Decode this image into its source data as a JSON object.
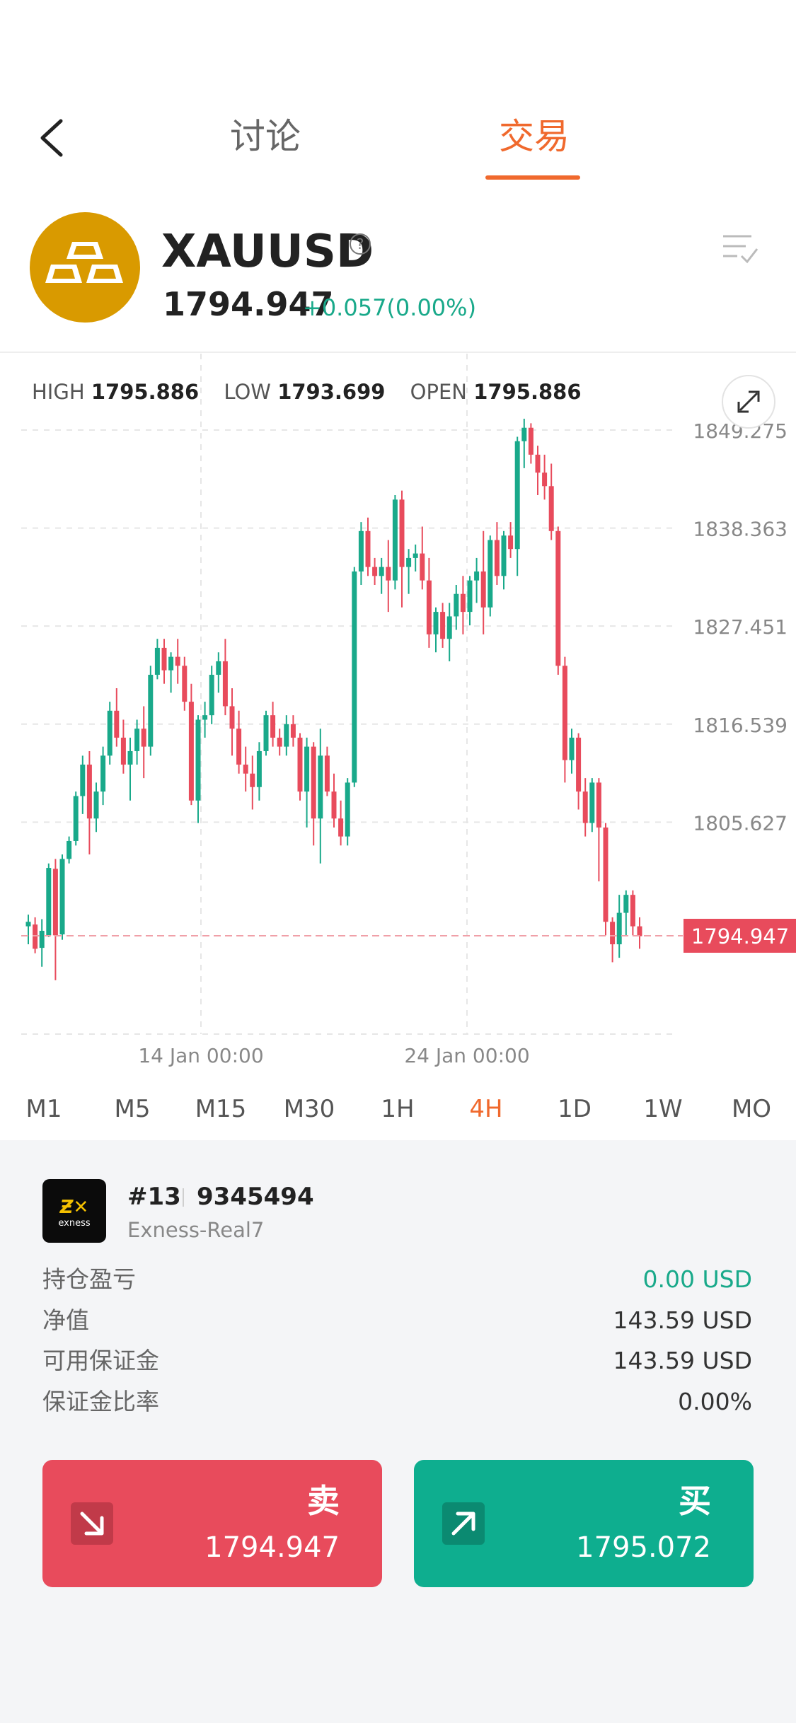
{
  "nav": {
    "back_icon": "chevron-left-icon",
    "tabs": [
      {
        "label": "讨论",
        "active": false
      },
      {
        "label": "交易",
        "active": true
      }
    ]
  },
  "instrument": {
    "symbol": "XAUUSD",
    "price": "1794.947",
    "change": "+0.057(0.00%)",
    "icon": "gold-bars-icon",
    "help_icon": "question-circle-icon",
    "list_icon": "checklist-icon"
  },
  "stats": {
    "high_label": "HIGH",
    "high": "1795.886",
    "low_label": "LOW",
    "low": "1793.699",
    "open_label": "OPEN",
    "open": "1795.886"
  },
  "chart_data": {
    "type": "candlestick",
    "y_ticks": [
      "1849.275",
      "1838.363",
      "1827.451",
      "1816.539",
      "1805.627"
    ],
    "x_ticks": [
      "14 Jan 00:00",
      "24 Jan 00:00"
    ],
    "current_price_label": "1794.947",
    "grid": true,
    "up_color": "#19a98a",
    "down_color": "#e84b5c",
    "candles": [
      [
        1796.0,
        1797.3,
        1794.0,
        1796.5
      ],
      [
        1796.2,
        1797.0,
        1793.0,
        1793.5
      ],
      [
        1793.6,
        1796.8,
        1791.5,
        1795.5
      ],
      [
        1795.0,
        1803.0,
        1794.8,
        1802.5
      ],
      [
        1802.4,
        1803.5,
        1790.0,
        1795.0
      ],
      [
        1795.1,
        1804.0,
        1794.5,
        1803.5
      ],
      [
        1803.5,
        1806.0,
        1803.0,
        1805.5
      ],
      [
        1805.5,
        1811.0,
        1805.0,
        1810.5
      ],
      [
        1810.5,
        1815.0,
        1808.5,
        1814.0
      ],
      [
        1814.0,
        1815.5,
        1804.0,
        1808.0
      ],
      [
        1808.0,
        1812.0,
        1806.5,
        1811.0
      ],
      [
        1811.0,
        1816.0,
        1809.5,
        1815.0
      ],
      [
        1815.0,
        1821.0,
        1814.0,
        1820.0
      ],
      [
        1820.0,
        1822.5,
        1816.0,
        1817.0
      ],
      [
        1817.0,
        1819.0,
        1813.0,
        1814.0
      ],
      [
        1814.0,
        1817.0,
        1810.0,
        1815.5
      ],
      [
        1815.5,
        1819.0,
        1814.0,
        1818.0
      ],
      [
        1818.0,
        1820.5,
        1812.5,
        1816.0
      ],
      [
        1816.0,
        1825.0,
        1815.0,
        1824.0
      ],
      [
        1824.0,
        1828.0,
        1823.5,
        1827.0
      ],
      [
        1827.0,
        1828.0,
        1823.0,
        1824.5
      ],
      [
        1824.5,
        1826.5,
        1822.0,
        1826.0
      ],
      [
        1826.0,
        1828.0,
        1823.0,
        1825.0
      ],
      [
        1825.0,
        1826.0,
        1820.0,
        1821.0
      ],
      [
        1821.0,
        1823.0,
        1809.5,
        1810.0
      ],
      [
        1810.0,
        1819.5,
        1807.5,
        1819.0
      ],
      [
        1819.0,
        1821.0,
        1817.0,
        1819.5
      ],
      [
        1819.5,
        1825.0,
        1818.5,
        1824.0
      ],
      [
        1824.0,
        1826.5,
        1822.0,
        1825.5
      ],
      [
        1825.5,
        1828.0,
        1819.5,
        1820.5
      ],
      [
        1820.5,
        1822.5,
        1815.0,
        1818.0
      ],
      [
        1818.0,
        1820.0,
        1813.0,
        1814.0
      ],
      [
        1814.0,
        1816.0,
        1811.0,
        1813.0
      ],
      [
        1813.0,
        1815.0,
        1809.0,
        1811.5
      ],
      [
        1811.5,
        1816.5,
        1810.0,
        1815.5
      ],
      [
        1815.5,
        1820.0,
        1815.0,
        1819.5
      ],
      [
        1819.5,
        1821.0,
        1816.0,
        1817.0
      ],
      [
        1817.0,
        1818.0,
        1815.0,
        1816.0
      ],
      [
        1816.0,
        1819.5,
        1815.0,
        1818.5
      ],
      [
        1818.5,
        1819.5,
        1816.0,
        1817.0
      ],
      [
        1817.0,
        1817.5,
        1810.0,
        1811.0
      ],
      [
        1811.0,
        1817.0,
        1807.0,
        1816.0
      ],
      [
        1816.0,
        1816.5,
        1805.0,
        1808.0
      ],
      [
        1808.0,
        1818.0,
        1803.0,
        1815.0
      ],
      [
        1815.0,
        1816.0,
        1810.5,
        1811.0
      ],
      [
        1811.0,
        1813.0,
        1807.0,
        1808.0
      ],
      [
        1808.0,
        1810.0,
        1805.0,
        1806.0
      ],
      [
        1806.0,
        1812.5,
        1805.0,
        1812.0
      ],
      [
        1812.0,
        1836.0,
        1811.5,
        1835.5
      ],
      [
        1835.5,
        1841.0,
        1834.0,
        1840.0
      ],
      [
        1840.0,
        1841.5,
        1835.0,
        1836.0
      ],
      [
        1836.0,
        1837.0,
        1834.0,
        1835.0
      ],
      [
        1835.0,
        1837.0,
        1833.0,
        1836.0
      ],
      [
        1836.0,
        1839.0,
        1831.0,
        1834.5
      ],
      [
        1834.5,
        1844.0,
        1833.5,
        1843.5
      ],
      [
        1843.5,
        1844.5,
        1831.5,
        1836.0
      ],
      [
        1836.0,
        1838.0,
        1833.0,
        1837.0
      ],
      [
        1837.0,
        1838.5,
        1835.5,
        1837.5
      ],
      [
        1837.5,
        1840.5,
        1833.5,
        1834.5
      ],
      [
        1834.5,
        1837.0,
        1827.0,
        1828.5
      ],
      [
        1828.5,
        1831.5,
        1826.5,
        1831.0
      ],
      [
        1831.0,
        1832.0,
        1827.0,
        1828.0
      ],
      [
        1828.0,
        1832.0,
        1825.5,
        1830.5
      ],
      [
        1830.5,
        1834.0,
        1829.0,
        1833.0
      ],
      [
        1833.0,
        1835.0,
        1828.5,
        1831.0
      ],
      [
        1831.0,
        1835.0,
        1829.5,
        1834.5
      ],
      [
        1834.5,
        1837.0,
        1832.0,
        1835.5
      ],
      [
        1835.5,
        1840.0,
        1828.5,
        1831.5
      ],
      [
        1831.5,
        1839.5,
        1830.5,
        1839.0
      ],
      [
        1839.0,
        1841.0,
        1834.0,
        1835.0
      ],
      [
        1835.0,
        1840.0,
        1833.5,
        1839.5
      ],
      [
        1839.5,
        1841.0,
        1837.0,
        1838.0
      ],
      [
        1838.0,
        1850.5,
        1835.0,
        1850.0
      ],
      [
        1850.0,
        1852.5,
        1847.0,
        1851.5
      ],
      [
        1851.5,
        1852.0,
        1847.5,
        1848.5
      ],
      [
        1848.5,
        1849.5,
        1844.0,
        1846.5
      ],
      [
        1846.5,
        1848.5,
        1843.5,
        1845.0
      ],
      [
        1845.0,
        1847.5,
        1839.0,
        1840.0
      ],
      [
        1840.0,
        1840.5,
        1824.0,
        1825.0
      ],
      [
        1825.0,
        1826.0,
        1812.0,
        1814.5
      ],
      [
        1814.5,
        1818.0,
        1813.0,
        1817.0
      ],
      [
        1817.0,
        1817.5,
        1809.0,
        1811.0
      ],
      [
        1811.0,
        1812.5,
        1806.0,
        1807.5
      ],
      [
        1807.5,
        1812.5,
        1806.5,
        1812.0
      ],
      [
        1812.0,
        1812.5,
        1801.0,
        1807.0
      ],
      [
        1807.0,
        1807.5,
        1795.0,
        1796.5
      ],
      [
        1796.5,
        1797.0,
        1792.0,
        1794.0
      ],
      [
        1794.0,
        1799.5,
        1792.5,
        1797.5
      ],
      [
        1797.5,
        1800.0,
        1795.0,
        1799.5
      ],
      [
        1799.5,
        1800.0,
        1795.0,
        1796.0
      ],
      [
        1796.0,
        1797.0,
        1793.5,
        1794.9
      ]
    ]
  },
  "timeframes": [
    {
      "label": "M1",
      "active": false
    },
    {
      "label": "M5",
      "active": false
    },
    {
      "label": "M15",
      "active": false
    },
    {
      "label": "M30",
      "active": false
    },
    {
      "label": "1H",
      "active": false
    },
    {
      "label": "4H",
      "active": true
    },
    {
      "label": "1D",
      "active": false
    },
    {
      "label": "1W",
      "active": false
    },
    {
      "label": "MO",
      "active": false
    }
  ],
  "account": {
    "number": "#13",
    "id": "9345494",
    "server": "Exness-Real7",
    "broker_logo_text": "exness",
    "rows": [
      {
        "label": "持仓盈亏",
        "value": "0.00 USD",
        "color": "#19a98a"
      },
      {
        "label": "净值",
        "value": "143.59 USD",
        "color": "#333333"
      },
      {
        "label": "可用保证金",
        "value": "143.59 USD",
        "color": "#333333"
      },
      {
        "label": "保证金比率",
        "value": "0.00%",
        "color": "#333333"
      }
    ]
  },
  "actions": {
    "sell": {
      "label": "卖",
      "price": "1794.947",
      "icon": "arrow-down-right-icon"
    },
    "buy": {
      "label": "买",
      "price": "1795.072",
      "icon": "arrow-up-right-icon"
    }
  },
  "colors": {
    "accent": "#f0692d",
    "up": "#19a98a",
    "down": "#e84b5c"
  }
}
